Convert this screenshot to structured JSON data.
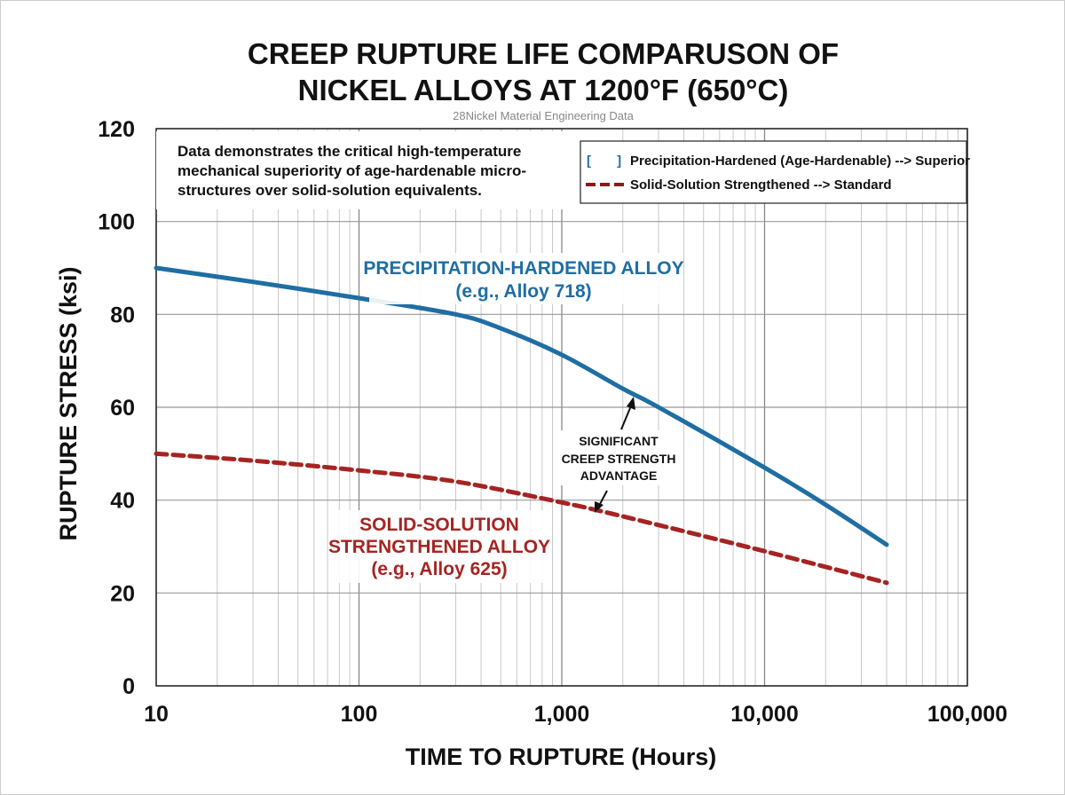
{
  "chart_data": {
    "type": "line",
    "title_lines": [
      "CREEP RUPTURE LIFE COMPARUSON OF",
      "NICKEL ALLOYS AT 1200°F (650°C)"
    ],
    "subtitle": "28Nickel Material Engineering Data",
    "xlabel": "TIME TO RUPTURE (Hours)",
    "ylabel": "RUPTURE STRESS (ksi)",
    "xscale": "log",
    "xlim": [
      10,
      100000
    ],
    "ylim": [
      0,
      120
    ],
    "xticks": [
      10,
      100,
      1000,
      10000,
      100000
    ],
    "xtick_labels": [
      "10",
      "100",
      "1,000",
      "10,000",
      "100,000"
    ],
    "yticks": [
      0,
      20,
      40,
      60,
      80,
      100,
      120
    ],
    "ytick_labels": [
      "0",
      "20",
      "40",
      "60",
      "80",
      "100",
      "120"
    ],
    "grid": true,
    "legend_position": "top-right",
    "legend": [
      {
        "marker": "[       ]",
        "label": "Precipitation-Hardened (Age-Hardenable) --> Superior"
      },
      {
        "marker": "dashed",
        "label": "Solid-Solution Strengthened --> Standard"
      }
    ],
    "note_lines": [
      "Data demonstrates the critical high-temperature",
      "mechanical superiority of age-hardenable micro-",
      "structures over solid-solution equivalents."
    ],
    "series": [
      {
        "name": "Precipitation-Hardened Alloy",
        "color": "#1f6ea3",
        "style": "solid",
        "x": [
          10,
          30,
          100,
          300,
          500,
          1000,
          2000,
          3000,
          10000,
          20000,
          40000
        ],
        "y": [
          90,
          87,
          83.5,
          80,
          77,
          71.3,
          64,
          60,
          47,
          39,
          30.4
        ],
        "label_lines": [
          "PRECIPITATION-HARDENED ALLOY",
          "(e.g., Alloy 718)"
        ]
      },
      {
        "name": "Solid-Solution Strengthened Alloy",
        "color": "#a52422",
        "style": "dashed",
        "x": [
          10,
          30,
          100,
          300,
          1000,
          2000,
          10000,
          40000
        ],
        "y": [
          50,
          48.5,
          46.4,
          44,
          39.5,
          36.5,
          29,
          22.2
        ],
        "label_lines": [
          "SOLID-SOLUTION",
          "STRENGTHENED ALLOY",
          "(e.g., Alloy 625)"
        ]
      }
    ],
    "annotation": {
      "lines": [
        "SIGNIFICANT",
        "CREEP STRENGTH",
        "ADVANTAGE"
      ]
    }
  }
}
